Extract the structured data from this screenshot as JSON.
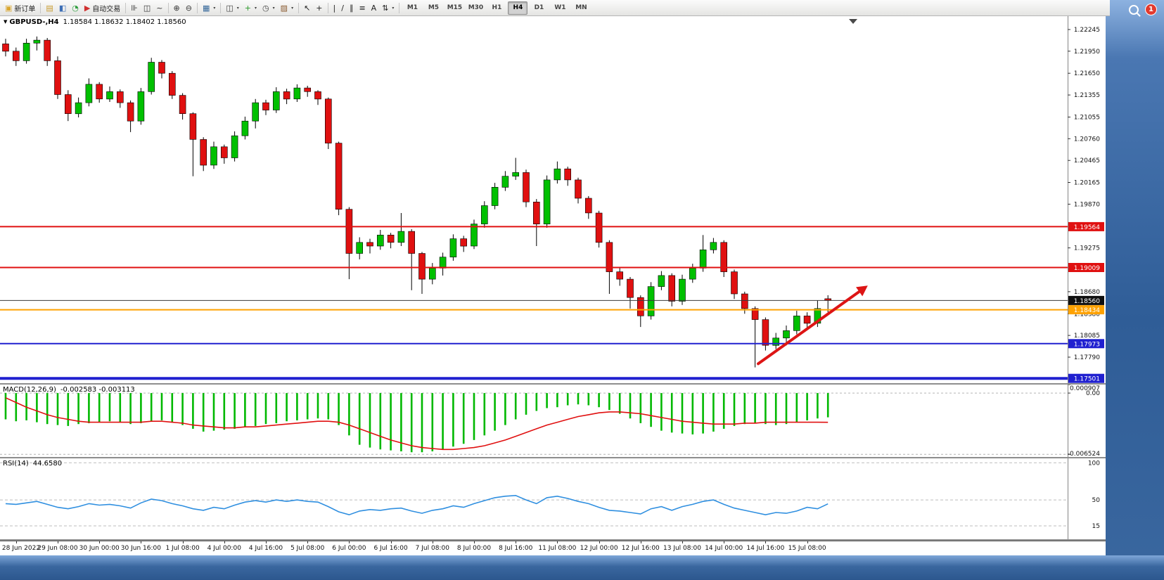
{
  "window": {
    "alert_badge": "1"
  },
  "toolbar": {
    "buttons": [
      {
        "name": "new-order-button",
        "glyph": "▣",
        "glyph_color": "#d9a62e",
        "label": "新订单"
      },
      {
        "sep": true
      },
      {
        "name": "profiles-icon",
        "glyph": "▤",
        "glyph_color": "#c99b2f"
      },
      {
        "name": "market-watch-icon",
        "glyph": "◧",
        "glyph_color": "#3e6fb6"
      },
      {
        "name": "data-window-icon",
        "glyph": "◔",
        "glyph_color": "#2f9e3f"
      },
      {
        "name": "autotrading-button",
        "glyph": "▶",
        "glyph_color": "#d03030",
        "label": "自动交易"
      },
      {
        "sep": true
      },
      {
        "name": "bar-chart-icon",
        "glyph": "⊪",
        "glyph_color": "#333333"
      },
      {
        "name": "candlestick-chart-icon",
        "glyph": "◫",
        "glyph_color": "#333333"
      },
      {
        "name": "line-chart-icon",
        "glyph": "~",
        "glyph_color": "#333333"
      },
      {
        "sep": true
      },
      {
        "name": "zoom-in-icon",
        "glyph": "⊕",
        "glyph_color": "#333333"
      },
      {
        "name": "zoom-out-icon",
        "glyph": "⊖",
        "glyph_color": "#333333"
      },
      {
        "sep": true
      },
      {
        "name": "tile-windows-icon",
        "glyph": "▦",
        "glyph_color": "#336699",
        "dropdown": true
      },
      {
        "sep": true
      },
      {
        "name": "new-chart-icon",
        "glyph": "◫",
        "glyph_color": "#444444",
        "dropdown": true
      },
      {
        "name": "indicators-icon",
        "glyph": "+",
        "glyph_color": "#2a9a2a",
        "dropdown": true
      },
      {
        "name": "periods-icon",
        "glyph": "◷",
        "glyph_color": "#444444",
        "dropdown": true
      },
      {
        "name": "templates-icon",
        "glyph": "▨",
        "glyph_color": "#8a5a30",
        "dropdown": true
      },
      {
        "sep": true
      },
      {
        "name": "cursor-icon",
        "glyph": "↖",
        "glyph_color": "#222222"
      },
      {
        "name": "crosshair-icon",
        "glyph": "+",
        "glyph_color": "#222222"
      },
      {
        "sep": true
      },
      {
        "name": "vertical-line-icon",
        "glyph": "|",
        "glyph_color": "#222222"
      },
      {
        "name": "trendline-icon",
        "glyph": "/",
        "glyph_color": "#222222"
      },
      {
        "name": "channel-icon",
        "glyph": "∥",
        "glyph_color": "#222222"
      },
      {
        "name": "fibonacci-icon",
        "glyph": "≡",
        "glyph_color": "#222222"
      },
      {
        "name": "text-icon",
        "glyph": "A",
        "glyph_color": "#222222"
      },
      {
        "name": "arrows-icon",
        "glyph": "⇅",
        "glyph_color": "#222222",
        "dropdown": true
      },
      {
        "sep": true
      }
    ],
    "timeframes": [
      {
        "label": "M1"
      },
      {
        "label": "M5"
      },
      {
        "label": "M15"
      },
      {
        "label": "M30"
      },
      {
        "label": "H1"
      },
      {
        "label": "H4",
        "active": true
      },
      {
        "label": "D1"
      },
      {
        "label": "W1"
      },
      {
        "label": "MN"
      }
    ]
  },
  "chart": {
    "symbol_dropdown_icon": "▼",
    "symbol": "GBPUSD-,H4",
    "ohlc_text": "1.18584 1.18632 1.18402 1.18560"
  },
  "chart_data": {
    "type": "candlestick",
    "title": "GBPUSD H4",
    "ylim": [
      1.17436,
      1.22436
    ],
    "up_color": "#00c000",
    "down_color": "#e01010",
    "candles": [
      [
        1.2205,
        1.2212,
        1.2188,
        1.2195
      ],
      [
        1.2195,
        1.22,
        1.2175,
        1.2182
      ],
      [
        1.2182,
        1.2212,
        1.2178,
        1.2206
      ],
      [
        1.2206,
        1.2215,
        1.2196,
        1.221
      ],
      [
        1.221,
        1.2213,
        1.2175,
        1.2182
      ],
      [
        1.2182,
        1.2188,
        1.213,
        1.2136
      ],
      [
        1.2136,
        1.2142,
        1.21,
        1.211
      ],
      [
        1.211,
        1.2132,
        1.2105,
        1.2125
      ],
      [
        1.2125,
        1.2158,
        1.212,
        1.215
      ],
      [
        1.215,
        1.2153,
        1.2125,
        1.213
      ],
      [
        1.213,
        1.2147,
        1.2126,
        1.214
      ],
      [
        1.214,
        1.2143,
        1.2118,
        1.2125
      ],
      [
        1.2125,
        1.2128,
        1.2085,
        1.21
      ],
      [
        1.21,
        1.2145,
        1.2095,
        1.214
      ],
      [
        1.214,
        1.2186,
        1.2136,
        1.218
      ],
      [
        1.218,
        1.2183,
        1.2158,
        1.2165
      ],
      [
        1.2165,
        1.2168,
        1.213,
        1.2135
      ],
      [
        1.2135,
        1.2138,
        1.2102,
        1.211
      ],
      [
        1.211,
        1.2112,
        1.2025,
        1.2075
      ],
      [
        1.2075,
        1.2078,
        1.2032,
        1.204
      ],
      [
        1.204,
        1.2072,
        1.2035,
        1.2065
      ],
      [
        1.2065,
        1.2068,
        1.2042,
        1.205
      ],
      [
        1.205,
        1.2086,
        1.2045,
        1.208
      ],
      [
        1.208,
        1.2106,
        1.2075,
        1.21
      ],
      [
        1.21,
        1.213,
        1.209,
        1.2125
      ],
      [
        1.2125,
        1.2129,
        1.2108,
        1.2115
      ],
      [
        1.2115,
        1.2146,
        1.2111,
        1.214
      ],
      [
        1.214,
        1.2144,
        1.2123,
        1.213
      ],
      [
        1.213,
        1.215,
        1.2126,
        1.2145
      ],
      [
        1.2145,
        1.2148,
        1.2133,
        1.214
      ],
      [
        1.214,
        1.2142,
        1.2122,
        1.213
      ],
      [
        1.213,
        1.2132,
        1.2062,
        1.207
      ],
      [
        1.207,
        1.2072,
        1.1972,
        1.198
      ],
      [
        1.198,
        1.1983,
        1.1885,
        1.192
      ],
      [
        1.192,
        1.1942,
        1.1912,
        1.1935
      ],
      [
        1.1935,
        1.194,
        1.192,
        1.193
      ],
      [
        1.193,
        1.1952,
        1.1925,
        1.1945
      ],
      [
        1.1945,
        1.1948,
        1.1927,
        1.1935
      ],
      [
        1.1935,
        1.1975,
        1.193,
        1.195
      ],
      [
        1.195,
        1.1953,
        1.187,
        1.192
      ],
      [
        1.192,
        1.1922,
        1.1865,
        1.1885
      ],
      [
        1.1885,
        1.1907,
        1.1878,
        1.19
      ],
      [
        1.19,
        1.1921,
        1.189,
        1.1915
      ],
      [
        1.1915,
        1.1946,
        1.191,
        1.194
      ],
      [
        1.194,
        1.1944,
        1.1922,
        1.193
      ],
      [
        1.193,
        1.1966,
        1.1926,
        1.196
      ],
      [
        1.196,
        1.1991,
        1.1955,
        1.1985
      ],
      [
        1.1985,
        1.2016,
        1.198,
        1.201
      ],
      [
        1.201,
        1.2032,
        1.2005,
        1.2025
      ],
      [
        1.2025,
        1.205,
        1.202,
        1.203
      ],
      [
        1.203,
        1.2034,
        1.1983,
        1.199
      ],
      [
        1.199,
        1.1994,
        1.193,
        1.196
      ],
      [
        1.196,
        1.2026,
        1.1955,
        1.202
      ],
      [
        1.202,
        1.2045,
        1.2015,
        1.2035
      ],
      [
        1.2035,
        1.2038,
        1.2012,
        1.202
      ],
      [
        1.202,
        1.2023,
        1.1988,
        1.1995
      ],
      [
        1.1995,
        1.1998,
        1.1967,
        1.1975
      ],
      [
        1.1975,
        1.1978,
        1.1928,
        1.1935
      ],
      [
        1.1935,
        1.1938,
        1.1865,
        1.1895
      ],
      [
        1.1895,
        1.19,
        1.1876,
        1.1885
      ],
      [
        1.1885,
        1.1888,
        1.1845,
        1.186
      ],
      [
        1.186,
        1.1863,
        1.182,
        1.1835
      ],
      [
        1.1835,
        1.1881,
        1.183,
        1.1875
      ],
      [
        1.1875,
        1.1896,
        1.187,
        1.189
      ],
      [
        1.189,
        1.1893,
        1.1848,
        1.1855
      ],
      [
        1.1855,
        1.1891,
        1.185,
        1.1885
      ],
      [
        1.1885,
        1.1906,
        1.188,
        1.19
      ],
      [
        1.19,
        1.1945,
        1.1895,
        1.1925
      ],
      [
        1.1925,
        1.1941,
        1.192,
        1.1935
      ],
      [
        1.1935,
        1.1938,
        1.1888,
        1.1895
      ],
      [
        1.1895,
        1.1898,
        1.1858,
        1.1865
      ],
      [
        1.1865,
        1.1868,
        1.1838,
        1.1845
      ],
      [
        1.1845,
        1.1848,
        1.1765,
        1.183
      ],
      [
        1.183,
        1.1833,
        1.1788,
        1.1795
      ],
      [
        1.1795,
        1.1812,
        1.179,
        1.1805
      ],
      [
        1.1805,
        1.1822,
        1.1795,
        1.1815
      ],
      [
        1.1815,
        1.1842,
        1.181,
        1.1835
      ],
      [
        1.1835,
        1.184,
        1.1818,
        1.1825
      ],
      [
        1.1825,
        1.1856,
        1.182,
        1.1845
      ],
      [
        1.18584,
        1.18632,
        1.18402,
        1.1856
      ]
    ],
    "price_ticks": [
      {
        "t": "1.22245",
        "v": 1.22245
      },
      {
        "t": "1.21950",
        "v": 1.2195
      },
      {
        "t": "1.21650",
        "v": 1.2165
      },
      {
        "t": "1.21355",
        "v": 1.21355
      },
      {
        "t": "1.21055",
        "v": 1.21055
      },
      {
        "t": "1.20760",
        "v": 1.2076
      },
      {
        "t": "1.20465",
        "v": 1.20465
      },
      {
        "t": "1.20165",
        "v": 1.20165
      },
      {
        "t": "1.19870",
        "v": 1.1987
      },
      {
        "t": "1.19275",
        "v": 1.19275
      },
      {
        "t": "1.18680",
        "v": 1.1868
      },
      {
        "t": "1.18380",
        "v": 1.1838
      },
      {
        "t": "1.18085",
        "v": 1.18085
      },
      {
        "t": "1.17790",
        "v": 1.1779
      }
    ],
    "hlines": [
      {
        "t": "1.19564",
        "v": 1.19564,
        "color": "#e01010",
        "w": 2
      },
      {
        "t": "1.19009",
        "v": 1.19009,
        "color": "#e01010",
        "w": 2
      },
      {
        "t": "1.18560",
        "v": 1.1856,
        "color": "#383838",
        "w": 1,
        "badge": "#101010"
      },
      {
        "t": "1.18434",
        "v": 1.18434,
        "color": "#ffa200",
        "w": 2
      },
      {
        "t": "1.17973",
        "v": 1.17973,
        "color": "#2020d0",
        "w": 2
      },
      {
        "t": "1.17501",
        "v": 1.17501,
        "color": "#2020d0",
        "w": 4
      }
    ],
    "arrow": {
      "from_index": 72.3,
      "from_price": 1.177,
      "to_index": 82.0,
      "to_price": 1.1868,
      "color": "#dd1515"
    },
    "time_labels": [
      "28 Jun 2022",
      "29 Jun 08:00",
      "30 Jun 00:00",
      "30 Jun 16:00",
      "1 Jul 08:00",
      "4 Jul 00:00",
      "4 Jul 16:00",
      "5 Jul 08:00",
      "6 Jul 00:00",
      "6 Jul 16:00",
      "7 Jul 08:00",
      "8 Jul 00:00",
      "8 Jul 16:00",
      "11 Jul 08:00",
      "12 Jul 00:00",
      "12 Jul 16:00",
      "13 Jul 08:00",
      "14 Jul 00:00",
      "14 Jul 16:00",
      "15 Jul 08:00"
    ],
    "macd": {
      "label": "MACD(12,26,9)",
      "values_text": "-0.002583 -0.003113",
      "ylim": [
        -0.0068,
        0.000907
      ],
      "hist_color": "#00b800",
      "line_color": "#e01010",
      "scale": [
        {
          "t": "0.000907",
          "v": 0.000907
        },
        {
          "t": "0.00",
          "v": 0
        },
        {
          "t": "-0.006524",
          "v": -0.006524
        }
      ],
      "hist": [
        -0.0028,
        -0.003,
        -0.0029,
        -0.0031,
        -0.0033,
        -0.0034,
        -0.0035,
        -0.0033,
        -0.0032,
        -0.0031,
        -0.003,
        -0.0031,
        -0.0033,
        -0.0032,
        -0.003,
        -0.0029,
        -0.0031,
        -0.0034,
        -0.0038,
        -0.0041,
        -0.004,
        -0.0039,
        -0.0038,
        -0.0036,
        -0.0035,
        -0.0033,
        -0.0032,
        -0.003,
        -0.0029,
        -0.0028,
        -0.0027,
        -0.0028,
        -0.0034,
        -0.0045,
        -0.0055,
        -0.0058,
        -0.006,
        -0.0061,
        -0.0062,
        -0.0063,
        -0.0063,
        -0.0062,
        -0.006,
        -0.0057,
        -0.0054,
        -0.005,
        -0.0045,
        -0.004,
        -0.0034,
        -0.0028,
        -0.0023,
        -0.0019,
        -0.0016,
        -0.0015,
        -0.0013,
        -0.0012,
        -0.0013,
        -0.0015,
        -0.0018,
        -0.0022,
        -0.0027,
        -0.0032,
        -0.0036,
        -0.004,
        -0.0042,
        -0.0043,
        -0.0044,
        -0.0043,
        -0.0041,
        -0.0038,
        -0.0035,
        -0.0033,
        -0.0032,
        -0.0033,
        -0.0034,
        -0.0033,
        -0.0031,
        -0.0029,
        -0.0027,
        -0.002583
      ],
      "signal": [
        -0.0005,
        -0.001,
        -0.0015,
        -0.0019,
        -0.0023,
        -0.0026,
        -0.0028,
        -0.003,
        -0.0031,
        -0.0031,
        -0.0031,
        -0.0031,
        -0.0031,
        -0.0031,
        -0.003,
        -0.003,
        -0.0031,
        -0.0032,
        -0.0034,
        -0.0035,
        -0.0036,
        -0.0037,
        -0.0037,
        -0.0036,
        -0.0036,
        -0.0035,
        -0.0034,
        -0.0033,
        -0.0032,
        -0.0031,
        -0.003,
        -0.003,
        -0.0031,
        -0.0034,
        -0.0038,
        -0.0042,
        -0.0046,
        -0.005,
        -0.0053,
        -0.0056,
        -0.0058,
        -0.0059,
        -0.006,
        -0.006,
        -0.0059,
        -0.0058,
        -0.0056,
        -0.0053,
        -0.005,
        -0.0046,
        -0.0042,
        -0.0038,
        -0.0034,
        -0.0031,
        -0.0028,
        -0.0025,
        -0.0023,
        -0.0021,
        -0.002,
        -0.002,
        -0.0021,
        -0.0022,
        -0.0024,
        -0.0026,
        -0.0028,
        -0.003,
        -0.0031,
        -0.0032,
        -0.0033,
        -0.0033,
        -0.0033,
        -0.0032,
        -0.0032,
        -0.0031,
        -0.0031,
        -0.0031,
        -0.0031,
        -0.0031,
        -0.0031,
        -0.003113
      ]
    },
    "rsi": {
      "label": "RSI(14)",
      "value_text": "44.6580",
      "color": "#2f8fe0",
      "levels": [
        {
          "t": "100",
          "v": 100
        },
        {
          "t": "50",
          "v": 50
        },
        {
          "t": "15",
          "v": 15
        }
      ],
      "values": [
        45,
        44,
        46,
        48,
        44,
        40,
        38,
        41,
        45,
        43,
        44,
        42,
        39,
        46,
        51,
        49,
        45,
        42,
        38,
        36,
        40,
        38,
        43,
        47,
        49,
        47,
        50,
        48,
        50,
        48,
        47,
        41,
        34,
        30,
        35,
        37,
        36,
        38,
        39,
        35,
        32,
        36,
        38,
        42,
        40,
        45,
        49,
        53,
        55,
        56,
        50,
        45,
        53,
        55,
        52,
        48,
        45,
        40,
        36,
        35,
        33,
        31,
        38,
        41,
        36,
        41,
        44,
        48,
        50,
        44,
        39,
        36,
        33,
        30,
        33,
        32,
        35,
        40,
        38,
        44.658
      ]
    }
  }
}
